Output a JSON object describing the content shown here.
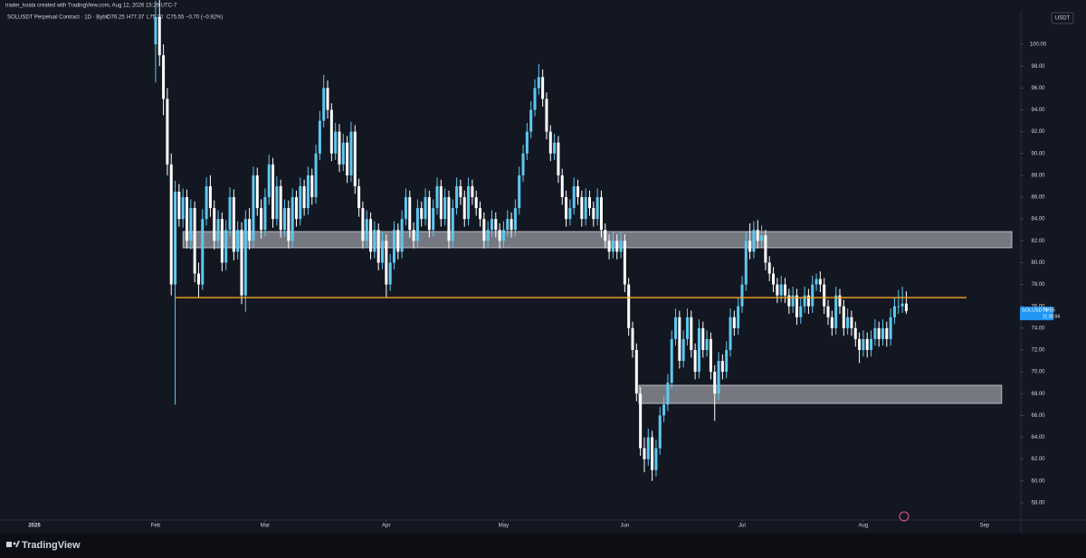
{
  "watermark": "trader_koala created with TradingView.com, Aug 12, 2026 15:29 UTC-7",
  "legend": {
    "open": "O76.25",
    "high": "H77.37",
    "low": "L75.30",
    "close": "C75.55",
    "change": "−0.70 (−0.92%)"
  },
  "price_axis": {
    "currency": "USDT",
    "symbol_tag": "SOLUSDT.P",
    "countdown": "11:30:04"
  },
  "footer": {
    "brand": "TradingView"
  },
  "chart_data": {
    "type": "candlestick",
    "xlim": [
      -8.8,
      252.3
    ],
    "ylim": [
      56.42,
      103.07
    ],
    "grid": false,
    "xticks": [
      {
        "value": 0,
        "label": "2026"
      },
      {
        "value": 31,
        "label": "Feb"
      },
      {
        "value": 59,
        "label": "Mar"
      },
      {
        "value": 90,
        "label": "Apr"
      },
      {
        "value": 120,
        "label": "May"
      },
      {
        "value": 151,
        "label": "Jun"
      },
      {
        "value": 181,
        "label": "Jul"
      },
      {
        "value": 212,
        "label": "Aug"
      },
      {
        "value": 243,
        "label": "Sep"
      }
    ],
    "yticks": [
      {
        "value": 58,
        "label": "58.00"
      },
      {
        "value": 60,
        "label": "60.00"
      },
      {
        "value": 62,
        "label": "62.00"
      },
      {
        "value": 64,
        "label": "64.00"
      },
      {
        "value": 66,
        "label": "66.00"
      },
      {
        "value": 68,
        "label": "68.00"
      },
      {
        "value": 70,
        "label": "70.00"
      },
      {
        "value": 72,
        "label": "72.00"
      },
      {
        "value": 74,
        "label": "74.00"
      },
      {
        "value": 76,
        "label": "76.00"
      },
      {
        "value": 78,
        "label": "78.00"
      },
      {
        "value": 80,
        "label": "80.00"
      },
      {
        "value": 82,
        "label": "82.00"
      },
      {
        "value": 84,
        "label": "84.00"
      },
      {
        "value": 86,
        "label": "86.00"
      },
      {
        "value": 88,
        "label": "88.00"
      },
      {
        "value": 90,
        "label": "90.00"
      },
      {
        "value": 92,
        "label": "92.00"
      },
      {
        "value": 94,
        "label": "94.00"
      },
      {
        "value": 96,
        "label": "96.00"
      },
      {
        "value": 98,
        "label": "98.00"
      },
      {
        "value": 100,
        "label": "100.00"
      }
    ],
    "zones": [
      {
        "from": 38,
        "to": 250,
        "low": 81.36,
        "high": 82.85,
        "color": "#c8c9d0"
      },
      {
        "from": 154.6,
        "to": 247.4,
        "low": 67.1,
        "high": 68.77,
        "color": "#c8c9d0"
      }
    ],
    "levels": [
      {
        "from": 36,
        "to": 238.4,
        "value": 76.8,
        "color": "#f5a623"
      }
    ],
    "series": [
      {
        "name": "SOLUSDT Perpetual Contract · 1D · Bybit",
        "up_color": "#5ec8f0",
        "down_color": "#ffffff",
        "x": [
          31,
          32,
          33,
          34,
          35,
          36,
          37,
          38,
          39,
          40,
          41,
          42,
          43,
          44,
          45,
          46,
          47,
          48,
          49,
          50,
          51,
          52,
          53,
          54,
          55,
          56,
          57,
          58,
          59,
          60,
          61,
          62,
          63,
          64,
          65,
          66,
          67,
          68,
          69,
          70,
          71,
          72,
          73,
          74,
          75,
          76,
          77,
          78,
          79,
          80,
          81,
          82,
          83,
          84,
          85,
          86,
          87,
          88,
          89,
          90,
          91,
          92,
          93,
          94,
          95,
          96,
          97,
          98,
          99,
          100,
          101,
          102,
          103,
          104,
          105,
          106,
          107,
          108,
          109,
          110,
          111,
          112,
          113,
          114,
          115,
          116,
          117,
          118,
          119,
          120,
          121,
          122,
          123,
          124,
          125,
          126,
          127,
          128,
          129,
          130,
          131,
          132,
          133,
          134,
          135,
          136,
          137,
          138,
          139,
          140,
          141,
          142,
          143,
          144,
          145,
          146,
          147,
          148,
          149,
          150,
          151,
          152,
          153,
          154,
          155,
          156,
          157,
          158,
          159,
          160,
          161,
          162,
          163,
          164,
          165,
          166,
          167,
          168,
          169,
          170,
          171,
          172,
          173,
          174,
          175,
          176,
          177,
          178,
          179,
          180,
          181,
          182,
          183,
          184,
          185,
          186,
          187,
          188,
          189,
          190,
          191,
          192,
          193,
          194,
          195,
          196,
          197,
          198,
          199,
          200,
          201,
          202,
          203,
          204,
          205,
          206,
          207,
          208,
          209,
          210,
          211,
          212,
          213,
          214,
          215,
          216,
          217,
          218,
          219,
          220,
          221,
          222,
          223
        ],
        "open": [
          100,
          102.5,
          99,
          95,
          89,
          78,
          86.5,
          84,
          86,
          82,
          85,
          79,
          78,
          84,
          87,
          85,
          82,
          84,
          80,
          83,
          86,
          81,
          83,
          77,
          84,
          82,
          88,
          85,
          83,
          86,
          89,
          84,
          87,
          83,
          85,
          82,
          86,
          84,
          87,
          85,
          88,
          86,
          90,
          93,
          96,
          94,
          90,
          92,
          89,
          91,
          88,
          92,
          87,
          85,
          82,
          84,
          81,
          83,
          80,
          82,
          78,
          80,
          83,
          81,
          84,
          86,
          83,
          82,
          85,
          84,
          86,
          83,
          85,
          87,
          84,
          86,
          82,
          85,
          87,
          86,
          84,
          87,
          86,
          85,
          84,
          82,
          83,
          84,
          83,
          82,
          83,
          84,
          83,
          85,
          88,
          90,
          92,
          94,
          96,
          97,
          95,
          92,
          90,
          91,
          88,
          86,
          84,
          85,
          87,
          86,
          84,
          86,
          85,
          84,
          86,
          83,
          82,
          81,
          82,
          81,
          82,
          78,
          74,
          72,
          68,
          63,
          62,
          64,
          61,
          63,
          66,
          67,
          69,
          73,
          75,
          71,
          73,
          75,
          72,
          70,
          74,
          72,
          73,
          70,
          68,
          71,
          70,
          72,
          75,
          74,
          76,
          78,
          82,
          81,
          83,
          82,
          82.5,
          80,
          79,
          78,
          77,
          78,
          77,
          76,
          77,
          75,
          76,
          77,
          76,
          78,
          78.5,
          78,
          76,
          75,
          74,
          77,
          76,
          74,
          75,
          74,
          73,
          72,
          73,
          72,
          73,
          74,
          73,
          74,
          73,
          75,
          76,
          76,
          76.25
        ],
        "high": [
          104,
          104.5,
          100,
          96,
          90,
          87.5,
          87.2,
          86.8,
          86.7,
          85.8,
          85.6,
          80,
          84.9,
          87.8,
          88,
          85.7,
          84.8,
          84.6,
          83.9,
          86.9,
          86.7,
          83.8,
          83.7,
          84.8,
          85,
          88.8,
          88.7,
          85.8,
          86.8,
          89.9,
          89.6,
          87.9,
          87.6,
          85.8,
          85.7,
          86.8,
          86.6,
          87.8,
          87.6,
          88.8,
          88.6,
          90.8,
          93.9,
          97.2,
          96.7,
          94.6,
          92.8,
          92.7,
          91.8,
          91.6,
          92.9,
          92.6,
          87.7,
          85.6,
          84.8,
          84.6,
          83.8,
          83.6,
          82.8,
          82.6,
          80.8,
          83.8,
          83.6,
          84.8,
          86.8,
          86.6,
          83.7,
          85.8,
          85.6,
          86.8,
          86.6,
          85.8,
          87.8,
          87.6,
          86.8,
          86.6,
          85.8,
          87.8,
          87.6,
          86.6,
          87.8,
          87.6,
          86.6,
          85.6,
          84.6,
          83.8,
          84.8,
          84.6,
          83.6,
          83.8,
          84.8,
          84.6,
          85.8,
          88.8,
          90.8,
          92.8,
          94.8,
          96.8,
          98.2,
          97.7,
          95.6,
          92.6,
          91.8,
          91.6,
          88.6,
          86.6,
          85.8,
          87.8,
          87.6,
          86.6,
          86.8,
          86.6,
          85.6,
          86.8,
          86.6,
          83.6,
          82.6,
          82.8,
          82.6,
          82.8,
          82.6,
          78.6,
          74.6,
          72.6,
          68.6,
          64,
          64.8,
          64.6,
          63.8,
          66.8,
          67.8,
          69.8,
          73.8,
          75.8,
          75.6,
          73.8,
          75.8,
          75.6,
          72.6,
          74.8,
          74.6,
          73.8,
          73.6,
          70.6,
          71.8,
          71.6,
          72.8,
          75.8,
          75.6,
          76.8,
          78.8,
          82.8,
          83.6,
          83.8,
          83.9,
          83.4,
          83,
          80.6,
          79.6,
          78.6,
          78.8,
          78.6,
          77.6,
          77.8,
          77.6,
          76.8,
          77.8,
          77.6,
          78.8,
          79,
          79.2,
          78.6,
          76.6,
          75.6,
          77.8,
          77.6,
          76.6,
          75.8,
          75.6,
          74.6,
          73.6,
          73.8,
          73.6,
          73.8,
          74.8,
          74.6,
          74.8,
          74.6,
          75.8,
          76.8,
          77.5,
          77.8,
          77.37
        ],
        "low": [
          96.5,
          98,
          93.5,
          88,
          77,
          67,
          83.3,
          83.2,
          81.3,
          81.2,
          78.2,
          76.8,
          77.5,
          83.4,
          84.2,
          81.2,
          81.3,
          79.2,
          79.3,
          82.4,
          80.2,
          80.3,
          76.2,
          75.5,
          81.2,
          81.4,
          84.3,
          82.2,
          82.4,
          85.3,
          83.2,
          83.4,
          82.3,
          82.4,
          81.3,
          81.4,
          83.3,
          83.4,
          84.3,
          84.4,
          85.3,
          85.4,
          89.4,
          92.4,
          93.2,
          89.3,
          89.4,
          88.3,
          88.4,
          87.3,
          87.4,
          86.3,
          84.2,
          81.3,
          81.4,
          80.3,
          80.4,
          79.3,
          79.4,
          76.8,
          77.4,
          79.4,
          80.3,
          80.4,
          83.4,
          82.3,
          81.3,
          81.4,
          83.3,
          83.4,
          82.3,
          82.4,
          84.4,
          83.3,
          83.4,
          81.3,
          81.4,
          84.4,
          85.3,
          83.3,
          83.4,
          85.3,
          84.3,
          83.3,
          81.3,
          81.4,
          82.4,
          82.3,
          81.3,
          81.4,
          82.4,
          82.3,
          82.4,
          84.4,
          87.4,
          89.4,
          91.4,
          93.4,
          95.4,
          94.3,
          91.3,
          89.3,
          89.4,
          87.3,
          85.3,
          83.3,
          83.4,
          84.4,
          85.3,
          83.3,
          83.4,
          84.3,
          83.3,
          83.4,
          82.3,
          81.3,
          80.3,
          80.4,
          80.3,
          80.4,
          77.3,
          73.3,
          71.3,
          67.3,
          62.3,
          60.8,
          61.4,
          60,
          60.4,
          62.4,
          65.4,
          66.4,
          68.4,
          72.4,
          70.3,
          70.4,
          72.4,
          71.3,
          69.3,
          69.4,
          71.3,
          71.4,
          69.3,
          65.5,
          67.4,
          69.3,
          69.4,
          71.4,
          73.3,
          73.4,
          75.4,
          77.4,
          80.3,
          80.4,
          81.3,
          81.4,
          79.3,
          78.3,
          77.3,
          76.3,
          76.4,
          76.3,
          75.3,
          75.4,
          74.3,
          74.4,
          75.4,
          75.3,
          75.4,
          77.4,
          77.3,
          75.3,
          74.3,
          73.3,
          73.4,
          75.3,
          73.3,
          73.4,
          73.3,
          72.3,
          70.8,
          71.4,
          71.3,
          71.4,
          72.4,
          72.3,
          72.4,
          72.3,
          72.4,
          74.4,
          75.3,
          75.4,
          75.3
        ],
        "close": [
          102.5,
          99,
          95,
          89,
          78,
          86.5,
          84,
          86,
          82,
          85,
          79,
          78,
          84,
          87,
          85,
          82,
          84,
          80,
          83,
          86,
          81,
          83,
          77,
          84,
          82,
          88,
          85,
          83,
          86,
          89,
          84,
          87,
          83,
          85,
          82,
          86,
          84,
          87,
          85,
          88,
          86,
          90,
          93,
          96,
          94,
          90,
          92,
          89,
          91,
          88,
          92,
          87,
          85,
          82,
          84,
          81,
          83,
          80,
          82,
          78,
          80,
          83,
          81,
          84,
          86,
          83,
          82,
          85,
          84,
          86,
          83,
          85,
          87,
          84,
          86,
          82,
          85,
          87,
          86,
          84,
          87,
          86,
          85,
          84,
          82,
          83,
          84,
          83,
          82,
          83,
          84,
          83,
          85,
          88,
          90,
          92,
          94,
          96,
          97,
          95,
          92,
          90,
          91,
          88,
          86,
          84,
          85,
          87,
          86,
          84,
          86,
          85,
          84,
          86,
          83,
          82,
          81,
          82,
          81,
          82,
          78,
          74,
          72,
          68,
          63,
          62,
          64,
          61,
          63,
          66,
          67,
          69,
          73,
          75,
          71,
          73,
          75,
          72,
          70,
          74,
          72,
          73,
          70,
          68,
          71,
          70,
          72,
          75,
          74,
          76,
          78,
          82,
          81,
          83,
          82,
          82.5,
          80,
          79,
          78,
          77,
          78,
          77,
          76,
          77,
          75,
          76,
          77,
          76,
          78,
          78.5,
          78,
          76,
          75,
          74,
          77,
          76,
          74,
          75,
          74,
          73,
          72,
          73,
          72,
          73,
          74,
          73,
          74,
          73,
          75,
          76,
          76,
          76.25,
          75.55
        ]
      }
    ]
  }
}
